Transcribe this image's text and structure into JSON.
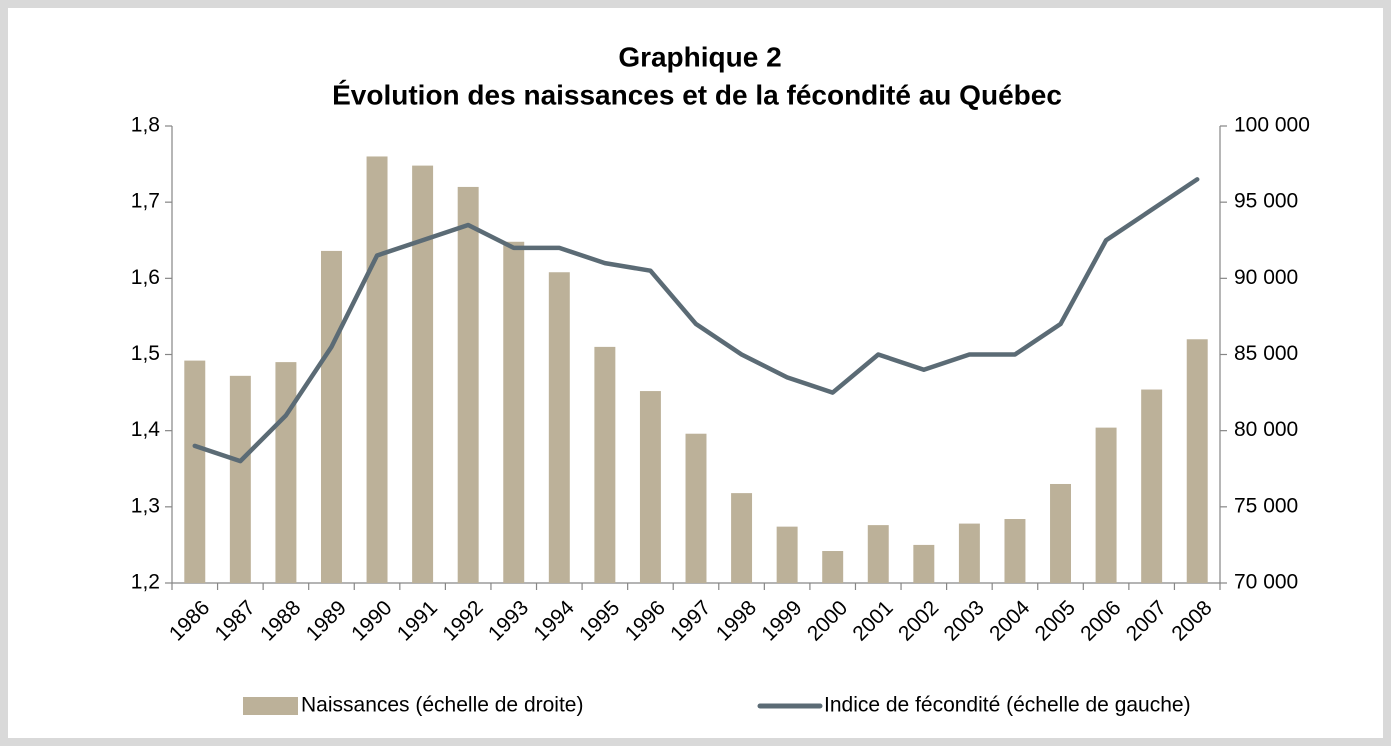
{
  "chart_data": {
    "type": "combo",
    "title": "Graphique 2",
    "subtitle": "Évolution des naissances et de la fécondité au Québec",
    "categories": [
      "1986",
      "1987",
      "1988",
      "1989",
      "1990",
      "1991",
      "1992",
      "1993",
      "1994",
      "1995",
      "1996",
      "1997",
      "1998",
      "1999",
      "2000",
      "2001",
      "2002",
      "2003",
      "2004",
      "2005",
      "2006",
      "2007",
      "2008"
    ],
    "series": [
      {
        "name": "Naissances (échelle de droite)",
        "type": "bar",
        "axis": "y2",
        "color": "#bcb199",
        "values": [
          84600,
          83600,
          84500,
          91800,
          98000,
          97400,
          96000,
          92400,
          90400,
          85500,
          82600,
          79800,
          75900,
          73700,
          72100,
          73800,
          72500,
          73900,
          74200,
          76500,
          80200,
          82700,
          86000
        ]
      },
      {
        "name": "Indice de fécondité (échelle de gauche)",
        "type": "line",
        "axis": "y",
        "color": "#5b6b75",
        "values": [
          1.38,
          1.36,
          1.42,
          1.51,
          1.63,
          1.65,
          1.67,
          1.64,
          1.64,
          1.62,
          1.61,
          1.54,
          1.5,
          1.47,
          1.45,
          1.5,
          1.48,
          1.5,
          1.5,
          1.54,
          1.65,
          1.69,
          1.73
        ]
      }
    ],
    "ylim": [
      1.2,
      1.8
    ],
    "yticks": [
      {
        "value": 1.2,
        "label": "1,2"
      },
      {
        "value": 1.3,
        "label": "1,3"
      },
      {
        "value": 1.4,
        "label": "1,4"
      },
      {
        "value": 1.5,
        "label": "1,5"
      },
      {
        "value": 1.6,
        "label": "1,6"
      },
      {
        "value": 1.7,
        "label": "1,7"
      },
      {
        "value": 1.8,
        "label": "1,8"
      }
    ],
    "y2lim": [
      70000,
      100000
    ],
    "y2ticks": [
      {
        "value": 70000,
        "label": "70 000"
      },
      {
        "value": 75000,
        "label": "75 000"
      },
      {
        "value": 80000,
        "label": "80 000"
      },
      {
        "value": 85000,
        "label": "85 000"
      },
      {
        "value": 90000,
        "label": "90 000"
      },
      {
        "value": 95000,
        "label": "95 000"
      },
      {
        "value": 100000,
        "label": "100 000"
      }
    ],
    "grid": false,
    "legend": "bottom"
  }
}
